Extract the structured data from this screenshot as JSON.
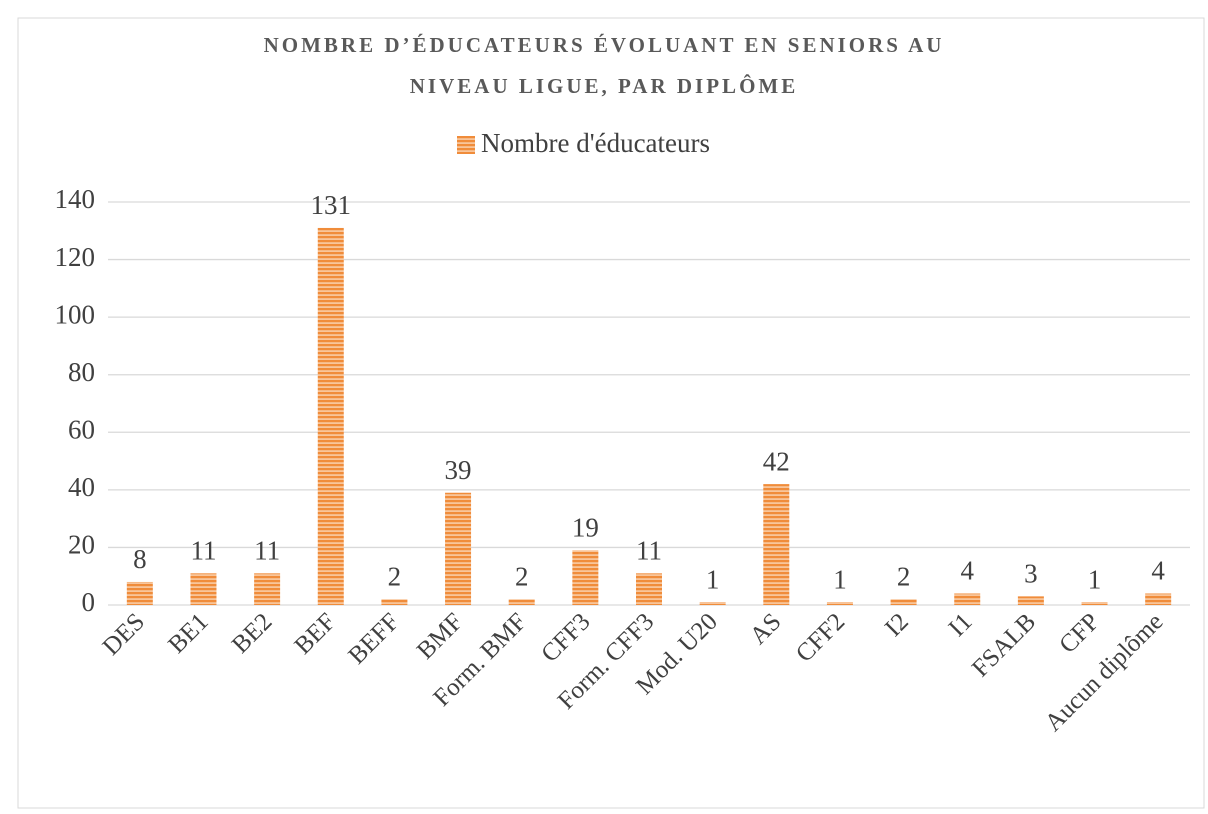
{
  "chart_data": {
    "type": "bar",
    "title": [
      "NOMBRE D’ÉDUCATEURS ÉVOLUANT EN SENIORS AU",
      "NIVEAU LIGUE,  PAR DIPLÔME"
    ],
    "series": [
      {
        "name": "Nombre d'éducateurs",
        "color": "#f5a35c",
        "values": [
          8,
          11,
          11,
          131,
          2,
          39,
          2,
          19,
          11,
          1,
          42,
          1,
          2,
          4,
          3,
          1,
          4
        ]
      }
    ],
    "categories": [
      "DES",
      "BE1",
      "BE2",
      "BEF",
      "BEFF",
      "BMF",
      "Form. BMF",
      "CFF3",
      "Form. CFF3",
      "Mod. U20",
      "AS",
      "CFF2",
      "I2",
      "I1",
      "FSALB",
      "CFP",
      "Aucun diplôme"
    ],
    "ylim": [
      0,
      140
    ],
    "yticks": [
      0,
      20,
      40,
      60,
      80,
      100,
      120,
      140
    ],
    "grid": true,
    "legend": "top"
  }
}
